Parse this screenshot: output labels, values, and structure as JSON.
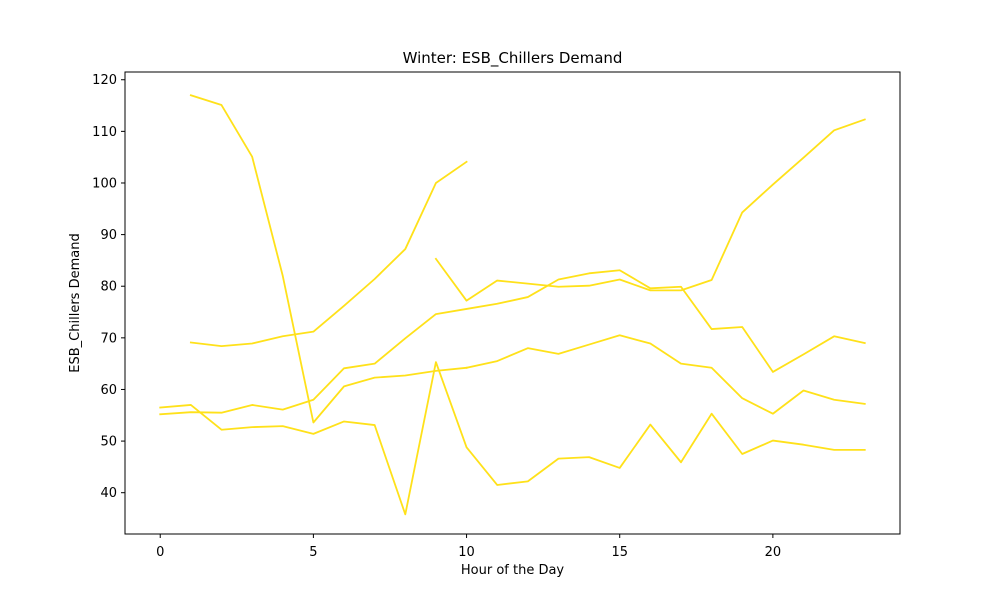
{
  "chart_data": {
    "type": "line",
    "title": "Winter: ESB_Chillers Demand",
    "xlabel": "Hour of the Day",
    "ylabel": "ESB_Chillers Demand",
    "xlim": [
      -1.15,
      24.15
    ],
    "ylim": [
      32,
      121.5
    ],
    "x_ticks": [
      0,
      5,
      10,
      15,
      20
    ],
    "y_ticks": [
      40,
      50,
      60,
      70,
      80,
      90,
      100,
      110,
      120
    ],
    "grid": false,
    "legend": "none",
    "line_color": "#ffe11a",
    "series": [
      {
        "x": [
          1,
          2,
          3,
          4,
          5,
          6,
          7,
          8,
          9,
          10
        ],
        "values": [
          117.0,
          115.1,
          105.1,
          82.0,
          53.6,
          60.6,
          62.3,
          62.7,
          63.6,
          64.2
        ]
      },
      {
        "x": [
          9,
          10,
          11,
          12,
          13,
          14,
          15,
          16,
          17,
          18,
          19,
          20,
          21,
          22,
          23
        ],
        "values": [
          85.3,
          77.2,
          81.1,
          80.5,
          79.9,
          80.1,
          81.3,
          79.2,
          79.2,
          81.2,
          94.3,
          99.7,
          104.9,
          110.2,
          112.3
        ]
      },
      {
        "x": [
          1,
          2,
          3,
          4,
          5,
          6,
          7,
          8,
          9,
          10
        ],
        "values": [
          69.1,
          68.4,
          68.9,
          70.3,
          71.2,
          76.2,
          81.4,
          87.2,
          100.0,
          104.1
        ]
      },
      {
        "x": [
          0,
          1,
          2,
          3,
          4,
          5,
          6,
          7,
          8,
          9,
          10,
          11,
          12,
          13,
          14,
          15,
          16,
          17,
          18,
          19,
          20,
          21,
          22,
          23
        ],
        "values": [
          55.2,
          55.6,
          55.5,
          57.0,
          56.1,
          58.0,
          64.1,
          65.0,
          69.9,
          74.6,
          75.6,
          76.6,
          77.9,
          81.3,
          82.5,
          83.1,
          79.6,
          79.9,
          71.7,
          72.1,
          63.4,
          66.8,
          70.3,
          69.0
        ]
      },
      {
        "x": [
          0,
          1,
          2,
          3,
          4,
          5,
          6,
          7,
          8,
          9,
          10,
          11,
          12,
          13,
          14,
          15,
          16,
          17,
          18,
          19,
          20,
          21,
          22,
          23
        ],
        "values": [
          56.5,
          57.0,
          52.2,
          52.7,
          52.9,
          51.4,
          53.8,
          53.1,
          35.8,
          65.3,
          48.8,
          41.5,
          42.2,
          46.6,
          46.9,
          44.8,
          53.2,
          45.9,
          55.3,
          47.5,
          50.1,
          49.3,
          48.3,
          48.3
        ]
      },
      {
        "x": [
          10,
          11,
          12,
          13,
          14,
          15,
          16,
          17,
          18,
          19,
          20,
          21,
          22,
          23
        ],
        "values": [
          64.2,
          65.5,
          68.0,
          66.9,
          68.7,
          70.5,
          68.9,
          65.0,
          64.2,
          58.3,
          55.3,
          59.8,
          58.0,
          57.2
        ]
      }
    ]
  }
}
